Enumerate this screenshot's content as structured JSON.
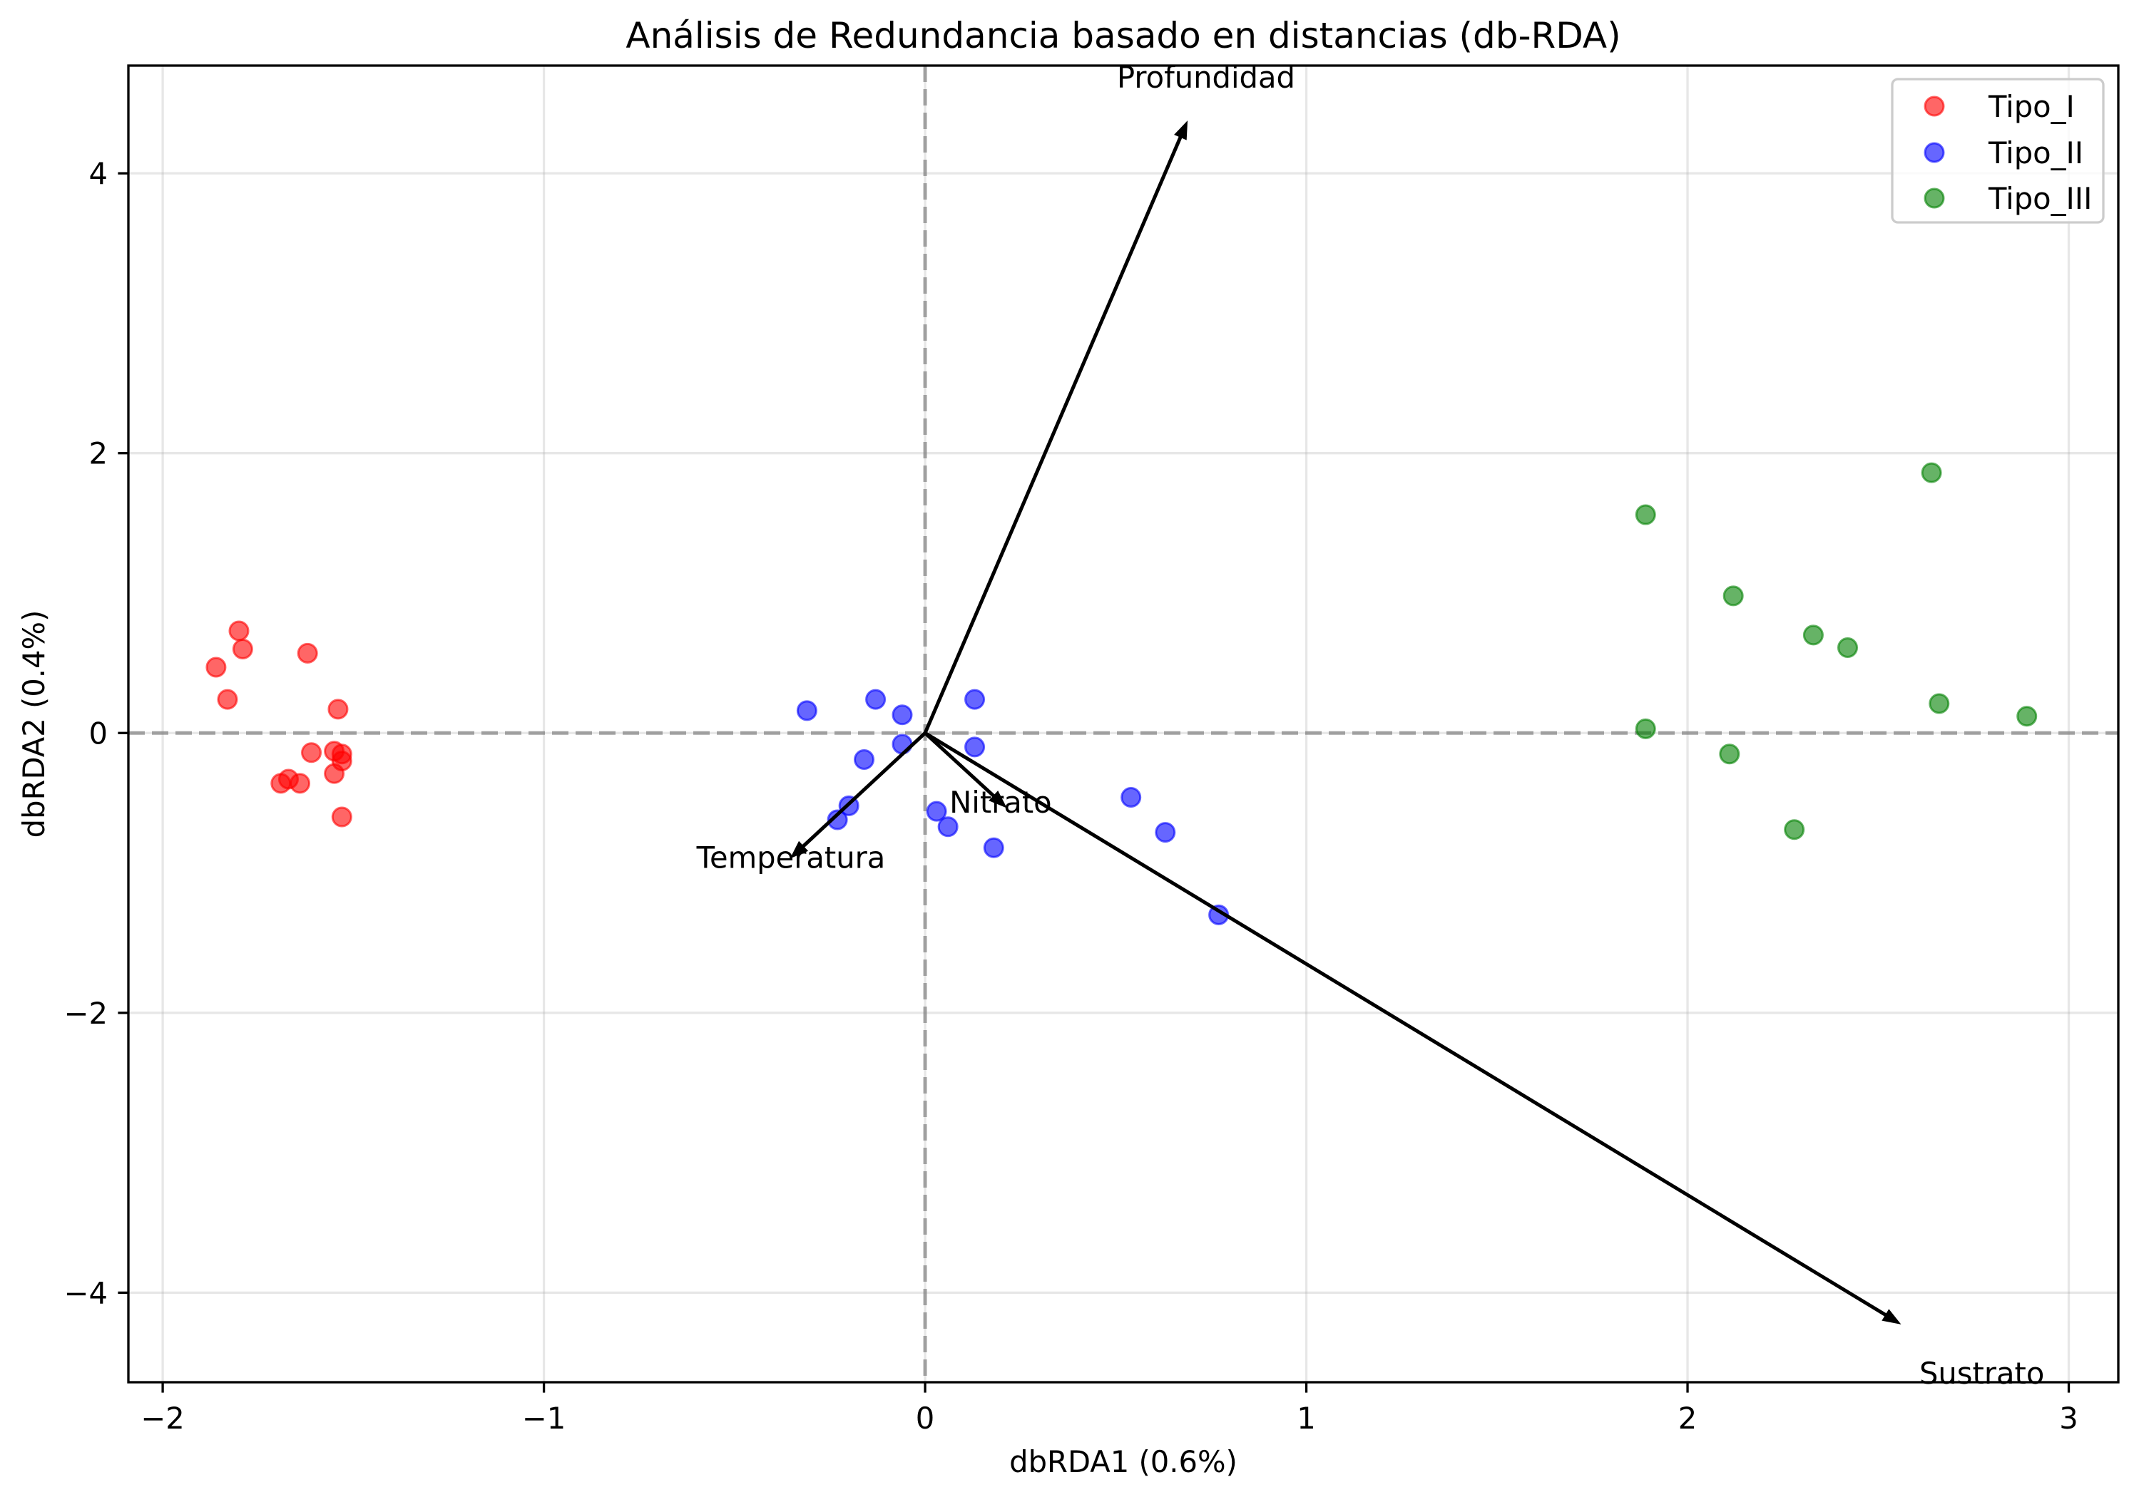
{
  "chart_data": {
    "type": "scatter",
    "title": "Análisis de Redundancia basado en distancias (db-RDA)",
    "xlabel": "dbRDA1 (0.6%)",
    "ylabel": "dbRDA2 (0.4%)",
    "xlim": [
      -2.09,
      3.13
    ],
    "ylim": [
      -4.64,
      4.77
    ],
    "x_ticks": [
      -2,
      -1,
      0,
      1,
      2,
      3
    ],
    "x_tick_labels": [
      "−2",
      "−1",
      "0",
      "1",
      "2",
      "3"
    ],
    "y_ticks": [
      -4,
      -2,
      0,
      2,
      4
    ],
    "y_tick_labels": [
      "−4",
      "−2",
      "0",
      "2",
      "4"
    ],
    "grid": true,
    "reference_lines": {
      "x": 0,
      "y": 0
    },
    "legend": {
      "position": "top-right"
    },
    "series": [
      {
        "name": "Tipo_I",
        "color": "#ff0000",
        "points": [
          [
            -1.8,
            0.73
          ],
          [
            -1.79,
            0.6
          ],
          [
            -1.86,
            0.47
          ],
          [
            -1.83,
            0.24
          ],
          [
            -1.62,
            0.57
          ],
          [
            -1.54,
            0.17
          ],
          [
            -1.61,
            -0.14
          ],
          [
            -1.55,
            -0.13
          ],
          [
            -1.53,
            -0.15
          ],
          [
            -1.53,
            -0.2
          ],
          [
            -1.55,
            -0.29
          ],
          [
            -1.67,
            -0.33
          ],
          [
            -1.69,
            -0.36
          ],
          [
            -1.64,
            -0.36
          ],
          [
            -1.53,
            -0.6
          ]
        ]
      },
      {
        "name": "Tipo_II",
        "color": "#0000ff",
        "points": [
          [
            -0.31,
            0.16
          ],
          [
            -0.13,
            0.24
          ],
          [
            -0.06,
            0.13
          ],
          [
            0.13,
            0.24
          ],
          [
            -0.06,
            -0.08
          ],
          [
            0.13,
            -0.1
          ],
          [
            -0.16,
            -0.19
          ],
          [
            -0.2,
            -0.52
          ],
          [
            -0.23,
            -0.62
          ],
          [
            0.03,
            -0.56
          ],
          [
            0.06,
            -0.67
          ],
          [
            0.18,
            -0.82
          ],
          [
            0.54,
            -0.46
          ],
          [
            0.63,
            -0.71
          ],
          [
            0.77,
            -1.3
          ]
        ]
      },
      {
        "name": "Tipo_III",
        "color": "#008000",
        "points": [
          [
            2.64,
            1.86
          ],
          [
            1.89,
            1.56
          ],
          [
            2.12,
            0.98
          ],
          [
            2.33,
            0.7
          ],
          [
            2.42,
            0.61
          ],
          [
            2.66,
            0.21
          ],
          [
            2.89,
            0.12
          ],
          [
            1.89,
            0.03
          ],
          [
            2.11,
            -0.15
          ],
          [
            2.28,
            -0.69
          ]
        ]
      }
    ],
    "vectors": [
      {
        "name": "Profundidad",
        "x": 0.67,
        "y": 4.26
      },
      {
        "name": "Sustrato",
        "x": 2.52,
        "y": -4.16
      },
      {
        "name": "Temperatura",
        "x": -0.32,
        "y": -0.81
      },
      {
        "name": "Nitrato",
        "x": 0.18,
        "y": -0.45
      }
    ],
    "vector_color": "#000000"
  }
}
